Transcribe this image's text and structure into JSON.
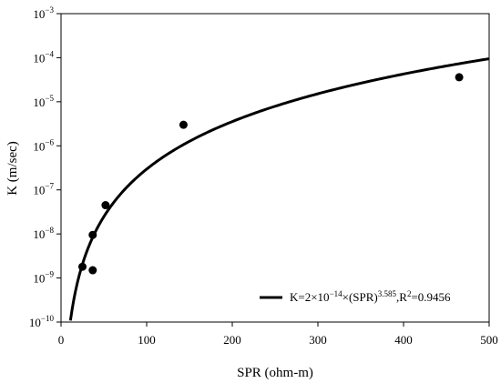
{
  "chart_data": {
    "type": "scatter",
    "xlabel": "SPR (ohm-m)",
    "ylabel": "K (m/sec)",
    "xlim": [
      0,
      500
    ],
    "ylim": [
      1e-10,
      0.001
    ],
    "y_scale": "log",
    "grid": false,
    "x_ticks": [
      0,
      100,
      200,
      300,
      400,
      500
    ],
    "y_ticks": [
      {
        "value": 0.001,
        "mant": "10",
        "exp": "−3"
      },
      {
        "value": 0.0001,
        "mant": "10",
        "exp": "−4"
      },
      {
        "value": 1e-05,
        "mant": "10",
        "exp": "−5"
      },
      {
        "value": 1e-06,
        "mant": "10",
        "exp": "−6"
      },
      {
        "value": 1e-07,
        "mant": "10",
        "exp": "−7"
      },
      {
        "value": 1e-08,
        "mant": "10",
        "exp": "−8"
      },
      {
        "value": 1e-09,
        "mant": "10",
        "exp": "−9"
      },
      {
        "value": 1e-10,
        "mant": "10",
        "exp": "−10"
      }
    ],
    "points": [
      {
        "x": 25,
        "y": 1.8e-09
      },
      {
        "x": 37,
        "y": 1.5e-09
      },
      {
        "x": 37,
        "y": 9.5e-09
      },
      {
        "x": 52,
        "y": 4.5e-08
      },
      {
        "x": 143,
        "y": 3e-06
      },
      {
        "x": 465,
        "y": 3.6e-05
      }
    ],
    "fit": {
      "coefficient": 2e-14,
      "exponent": 3.585,
      "r2": 0.9456,
      "x_range": [
        11,
        500
      ]
    },
    "legend": {
      "placement": "bottom-right",
      "parts": {
        "p1": "K=2×10",
        "p2": "−14",
        "p3": "×(SPR)",
        "p4": "3.585",
        "p5": ",R",
        "p6": "2",
        "p7": "=0.9456"
      }
    }
  }
}
